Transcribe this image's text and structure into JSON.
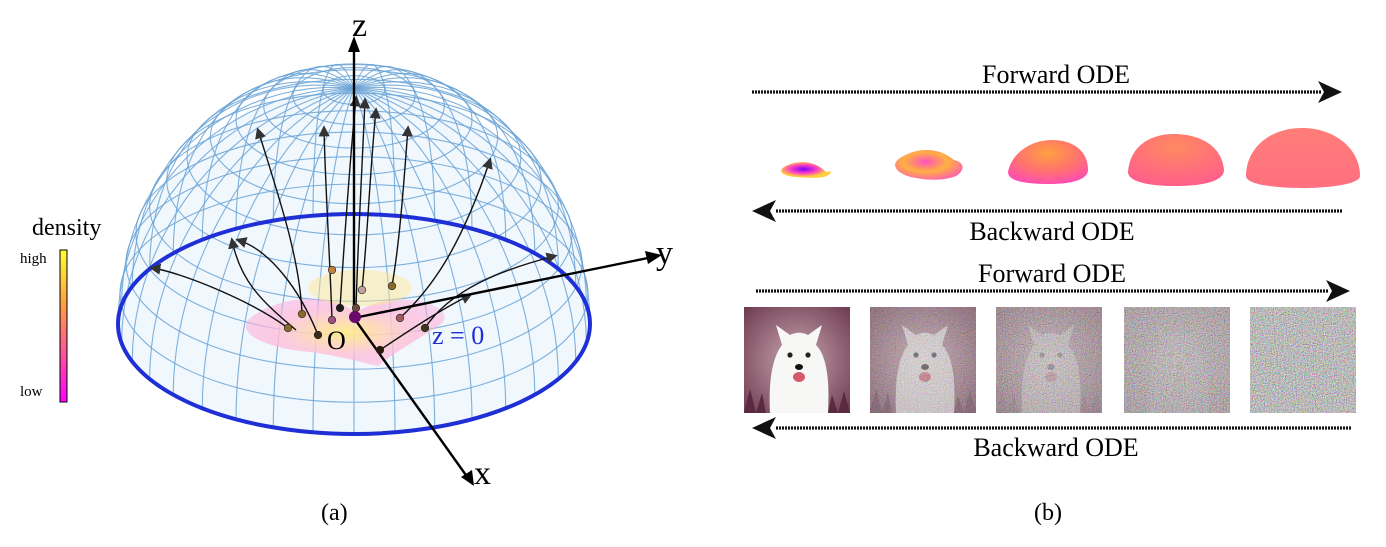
{
  "panel_a": {
    "caption": "(a)",
    "axis_z": "z",
    "axis_y": "y",
    "axis_x": "x",
    "origin_label": "O",
    "plane_label": "z = 0",
    "colorbar": {
      "title": "density",
      "high_label": "high",
      "low_label": "low",
      "colors": [
        "#ffff33",
        "#ffa040",
        "#ff4fa0",
        "#ff00ff"
      ]
    },
    "hemisphere_color": "#6aa3d6",
    "equator_color": "#1f2fd6"
  },
  "panel_b": {
    "caption": "(b)",
    "top_forward_label": "Forward ODE",
    "top_backward_label": "Backward ODE",
    "bottom_forward_label": "Forward ODE",
    "bottom_backward_label": "Backward ODE",
    "shape_stages": [
      {
        "name": "stage-1",
        "spread": 0.0
      },
      {
        "name": "stage-2",
        "spread": 0.25
      },
      {
        "name": "stage-3",
        "spread": 0.5
      },
      {
        "name": "stage-4",
        "spread": 0.75
      },
      {
        "name": "stage-5",
        "spread": 1.0
      }
    ],
    "image_stages": [
      {
        "name": "clean-dog",
        "noise": 0.0
      },
      {
        "name": "slightly-noisy-dog",
        "noise": 0.25
      },
      {
        "name": "noisy-dog",
        "noise": 0.5
      },
      {
        "name": "very-noisy-dog",
        "noise": 0.75
      },
      {
        "name": "pure-noise",
        "noise": 1.0
      }
    ]
  }
}
